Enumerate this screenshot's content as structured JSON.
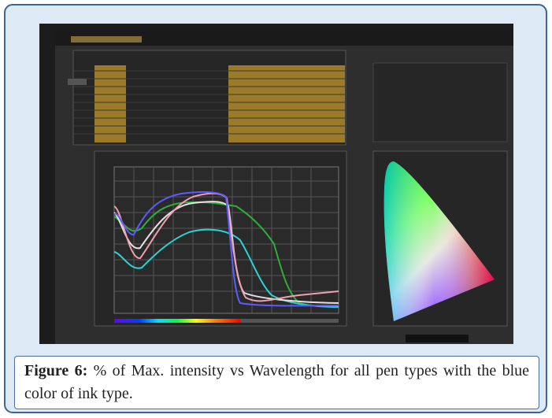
{
  "figure": {
    "label": "Figure 6:",
    "caption": "% of Max. intensity vs Wavelength for all pen types with the blue color of ink type."
  }
}
